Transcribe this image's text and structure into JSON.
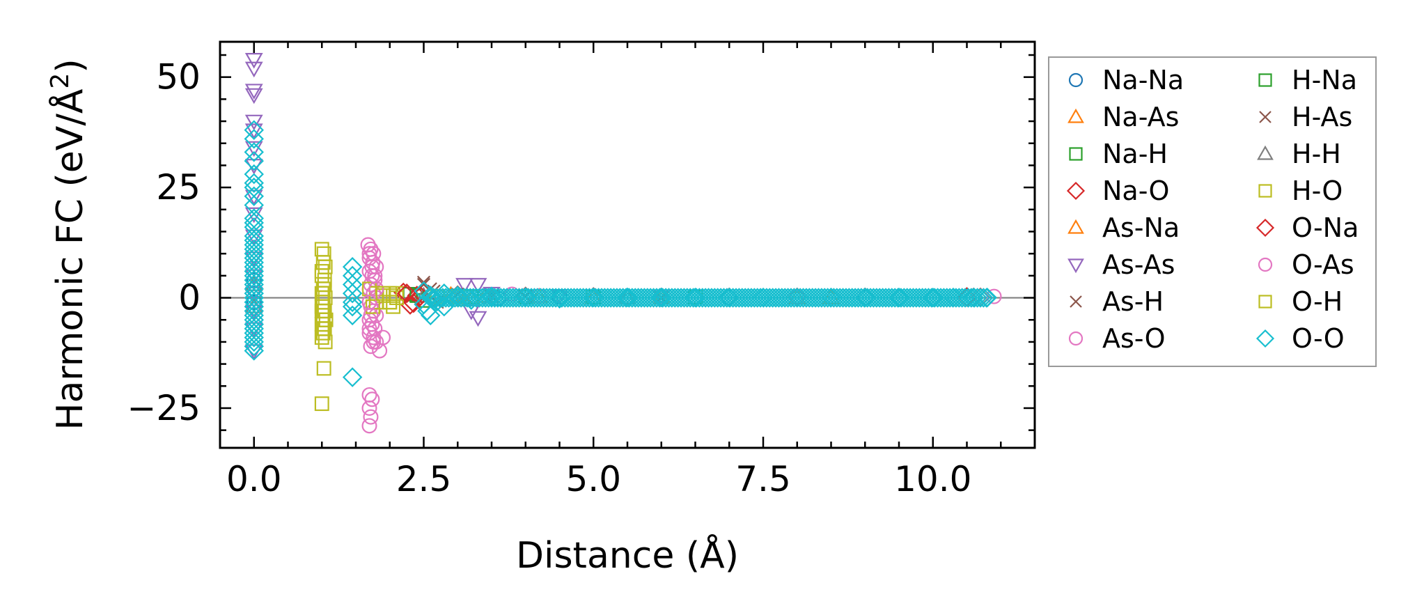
{
  "chart_data": {
    "type": "scatter",
    "title": "",
    "xlabel": "Distance (Å)",
    "ylabel_main": "Harmonic FC (eV/Å",
    "ylabel_sup": "2",
    "ylabel_close": ")",
    "xlim": [
      -0.5,
      11.5
    ],
    "ylim": [
      -34,
      58
    ],
    "x_ticks": [
      0.0,
      2.5,
      5.0,
      7.5,
      10.0
    ],
    "x_tick_labels": [
      "0.0",
      "2.5",
      "5.0",
      "7.5",
      "10.0"
    ],
    "y_ticks": [
      -25,
      0,
      25,
      50
    ],
    "y_tick_labels": [
      "−25",
      "0",
      "25",
      "50"
    ],
    "zero_line": true,
    "legend_position": "outside-right",
    "series": [
      {
        "name": "Na-Na",
        "marker": "circle",
        "color": "#1f77b4",
        "points": [
          [
            0,
            2
          ],
          [
            0,
            -1
          ],
          [
            0,
            4
          ],
          [
            3.4,
            0.4
          ],
          [
            3.6,
            -0.2
          ],
          [
            4.5,
            0.2
          ],
          [
            5.5,
            0.1
          ],
          [
            7,
            0.05
          ],
          [
            9,
            0.02
          ]
        ]
      },
      {
        "name": "Na-As",
        "marker": "triangle-up",
        "color": "#ff7f0e",
        "points": [
          [
            2.9,
            0.6
          ],
          [
            3.1,
            -0.5
          ],
          [
            3.4,
            0.3
          ],
          [
            4.2,
            0.2
          ],
          [
            6.0,
            0.1
          ],
          [
            8.0,
            0.05
          ]
        ]
      },
      {
        "name": "Na-H",
        "marker": "square",
        "color": "#2ca02c",
        "points": [
          [
            2.3,
            0.8
          ],
          [
            2.5,
            -0.6
          ],
          [
            3.0,
            0.4
          ],
          [
            4.0,
            0.2
          ],
          [
            6.5,
            0.1
          ]
        ]
      },
      {
        "name": "Na-O",
        "marker": "diamond",
        "color": "#d62728",
        "points": [
          [
            2.2,
            1.2
          ],
          [
            2.3,
            -1.6
          ],
          [
            2.4,
            0.5
          ],
          [
            3.0,
            0.6
          ],
          [
            5.0,
            0.2
          ],
          [
            7.0,
            0.1
          ],
          [
            9.0,
            0.1
          ],
          [
            10.5,
            0.2
          ],
          [
            10.7,
            0.1
          ]
        ]
      },
      {
        "name": "As-Na",
        "marker": "triangle-up",
        "color": "#ff7f0e",
        "points": [
          [
            2.9,
            0.5
          ],
          [
            3.2,
            -0.4
          ],
          [
            5.0,
            0.1
          ],
          [
            8.5,
            0.05
          ]
        ]
      },
      {
        "name": "As-As",
        "marker": "triangle-down",
        "color": "#9467bd",
        "points": [
          [
            0,
            54
          ],
          [
            0,
            52
          ],
          [
            0,
            47
          ],
          [
            0,
            46
          ],
          [
            0,
            40
          ],
          [
            0,
            38
          ],
          [
            0,
            34
          ],
          [
            0,
            30
          ],
          [
            0,
            23
          ],
          [
            0,
            19
          ],
          [
            0,
            14
          ],
          [
            0,
            9
          ],
          [
            0,
            5
          ],
          [
            0,
            1
          ],
          [
            0,
            -3
          ],
          [
            0,
            -7
          ],
          [
            0,
            -12
          ],
          [
            3.1,
            3
          ],
          [
            3.2,
            -3
          ],
          [
            3.3,
            3
          ],
          [
            3.3,
            -4.5
          ],
          [
            3.5,
            1
          ],
          [
            4.5,
            0.5
          ],
          [
            6,
            0.2
          ]
        ]
      },
      {
        "name": "As-H",
        "marker": "x",
        "color": "#8c564b",
        "points": [
          [
            2.5,
            3.5
          ],
          [
            2.6,
            2
          ],
          [
            2.7,
            -1
          ],
          [
            3.0,
            0.8
          ],
          [
            4.0,
            0.3
          ],
          [
            6.0,
            0.1
          ]
        ]
      },
      {
        "name": "As-O",
        "marker": "circle",
        "color": "#e377c2",
        "points": [
          [
            1.68,
            12
          ],
          [
            1.72,
            11
          ],
          [
            1.76,
            10
          ],
          [
            1.7,
            9
          ],
          [
            1.75,
            8
          ],
          [
            1.8,
            7
          ],
          [
            1.7,
            6
          ],
          [
            1.74,
            5
          ],
          [
            1.78,
            4
          ],
          [
            1.72,
            3
          ],
          [
            1.7,
            2
          ],
          [
            1.76,
            1
          ],
          [
            1.8,
            0
          ],
          [
            1.7,
            -1
          ],
          [
            1.72,
            -2
          ],
          [
            1.76,
            -3
          ],
          [
            1.8,
            -4
          ],
          [
            1.7,
            -5
          ],
          [
            1.74,
            -6
          ],
          [
            1.78,
            -7
          ],
          [
            1.7,
            -8
          ],
          [
            1.76,
            -9
          ],
          [
            1.8,
            -10
          ],
          [
            1.72,
            -11
          ],
          [
            1.85,
            -12
          ],
          [
            1.9,
            -9
          ],
          [
            1.7,
            -22
          ],
          [
            1.74,
            -23
          ],
          [
            1.7,
            -25
          ],
          [
            1.72,
            -27
          ],
          [
            1.7,
            -29
          ],
          [
            3.8,
            0.8
          ],
          [
            4.2,
            0.4
          ],
          [
            6.0,
            0.2
          ],
          [
            8.0,
            0.1
          ],
          [
            10.9,
            0.3
          ]
        ]
      },
      {
        "name": "H-Na",
        "marker": "square",
        "color": "#2ca02c",
        "points": [
          [
            2.4,
            0.5
          ],
          [
            3.2,
            0.3
          ],
          [
            5.0,
            0.1
          ]
        ]
      },
      {
        "name": "H-As",
        "marker": "x",
        "color": "#8c564b",
        "points": [
          [
            2.5,
            3.0
          ],
          [
            2.65,
            1.5
          ],
          [
            3.5,
            0.4
          ]
        ]
      },
      {
        "name": "H-H",
        "marker": "triangle-up",
        "color": "#7f7f7f",
        "points": [
          [
            0,
            3
          ],
          [
            0,
            -2
          ],
          [
            2.5,
            0.4
          ],
          [
            3.5,
            0.2
          ],
          [
            5.5,
            0.1
          ]
        ]
      },
      {
        "name": "H-O",
        "marker": "square",
        "color": "#bcbd22",
        "points": [
          [
            1.0,
            11
          ],
          [
            1.03,
            10
          ],
          [
            1.02,
            8
          ],
          [
            1.05,
            7
          ],
          [
            1.0,
            5
          ],
          [
            1.04,
            4
          ],
          [
            1.02,
            2
          ],
          [
            1.0,
            1
          ],
          [
            1.05,
            0
          ],
          [
            1.02,
            -1
          ],
          [
            1.0,
            -2
          ],
          [
            1.04,
            -3
          ],
          [
            1.02,
            -4
          ],
          [
            1.06,
            -5
          ],
          [
            1.0,
            -6
          ],
          [
            1.04,
            -7
          ],
          [
            1.02,
            -8
          ],
          [
            1.0,
            -9
          ],
          [
            1.05,
            -10
          ],
          [
            1.03,
            -16
          ],
          [
            1.0,
            -24
          ],
          [
            1.7,
            2
          ],
          [
            1.75,
            -2
          ],
          [
            1.8,
            1
          ],
          [
            1.8,
            -1
          ],
          [
            1.9,
            0.5
          ],
          [
            2.0,
            1
          ],
          [
            2.0,
            -1
          ],
          [
            2.05,
            0.5
          ],
          [
            2.05,
            -2
          ],
          [
            2.1,
            0
          ],
          [
            2.1,
            1
          ],
          [
            2.7,
            0.3
          ],
          [
            3.0,
            0.2
          ]
        ]
      },
      {
        "name": "O-Na",
        "marker": "diamond",
        "color": "#d62728",
        "points": [
          [
            2.25,
            1.0
          ],
          [
            2.35,
            -1.2
          ],
          [
            2.45,
            0.4
          ],
          [
            4.0,
            0.3
          ],
          [
            6.0,
            0.1
          ],
          [
            8.0,
            0.1
          ],
          [
            10.6,
            0.1
          ]
        ]
      },
      {
        "name": "O-As",
        "marker": "circle",
        "color": "#e377c2",
        "points": [
          [
            1.7,
            10
          ],
          [
            1.74,
            7
          ],
          [
            1.7,
            -7
          ],
          [
            1.76,
            -10
          ],
          [
            1.78,
            5
          ],
          [
            1.72,
            -4
          ],
          [
            1.8,
            2
          ],
          [
            1.7,
            -1
          ]
        ]
      },
      {
        "name": "O-H",
        "marker": "square",
        "color": "#bcbd22",
        "points": [
          [
            1.0,
            6
          ],
          [
            1.02,
            -7
          ],
          [
            1.04,
            3
          ],
          [
            1.0,
            -3
          ],
          [
            1.9,
            1
          ],
          [
            2.0,
            -1
          ]
        ]
      },
      {
        "name": "O-O",
        "marker": "diamond",
        "color": "#17becf",
        "points": [
          [
            0,
            38
          ],
          [
            0,
            36
          ],
          [
            0,
            33
          ],
          [
            0,
            31
          ],
          [
            0,
            28
          ],
          [
            0,
            26
          ],
          [
            0,
            25
          ],
          [
            0,
            23
          ],
          [
            0,
            21
          ],
          [
            0,
            18
          ],
          [
            0,
            17
          ],
          [
            0,
            16
          ],
          [
            0,
            14
          ],
          [
            0,
            13
          ],
          [
            0,
            12
          ],
          [
            0,
            11
          ],
          [
            0,
            10
          ],
          [
            0,
            9
          ],
          [
            0,
            8
          ],
          [
            0,
            7
          ],
          [
            0,
            6
          ],
          [
            0,
            5
          ],
          [
            0,
            4
          ],
          [
            0,
            3
          ],
          [
            0,
            2
          ],
          [
            0,
            1
          ],
          [
            0,
            0
          ],
          [
            0,
            -1
          ],
          [
            0,
            -2
          ],
          [
            0,
            -3
          ],
          [
            0,
            -4
          ],
          [
            0,
            -5
          ],
          [
            0,
            -6
          ],
          [
            0,
            -7
          ],
          [
            0,
            -8
          ],
          [
            0,
            -9
          ],
          [
            0,
            -10
          ],
          [
            0,
            -11
          ],
          [
            0,
            -12
          ],
          [
            1.45,
            7
          ],
          [
            1.45,
            5
          ],
          [
            1.45,
            3
          ],
          [
            1.45,
            1
          ],
          [
            1.45,
            -1
          ],
          [
            1.45,
            -2
          ],
          [
            1.45,
            -4
          ],
          [
            1.45,
            -18
          ],
          [
            2.5,
            1.5
          ],
          [
            2.5,
            -1.5
          ],
          [
            2.6,
            0.5
          ],
          [
            2.7,
            -0.8
          ],
          [
            2.8,
            1
          ],
          [
            2.8,
            -2
          ],
          [
            2.6,
            -4
          ],
          [
            2.55,
            -3
          ],
          [
            3.0,
            0.5
          ],
          [
            3.2,
            -0.5
          ],
          [
            3.5,
            0.3
          ],
          [
            4.0,
            0.2
          ],
          [
            4.5,
            -0.2
          ],
          [
            5.0,
            0.1
          ],
          [
            5.5,
            0.1
          ],
          [
            6.0,
            0.1
          ],
          [
            6.5,
            0.05
          ],
          [
            7.0,
            0.05
          ],
          [
            7.5,
            0.05
          ],
          [
            8.0,
            0.05
          ],
          [
            8.5,
            0.05
          ],
          [
            9.0,
            0.05
          ],
          [
            9.5,
            0.05
          ],
          [
            10.0,
            0.05
          ],
          [
            10.3,
            0.05
          ],
          [
            10.6,
            0.05
          ],
          [
            10.8,
            0.05
          ]
        ]
      }
    ]
  }
}
